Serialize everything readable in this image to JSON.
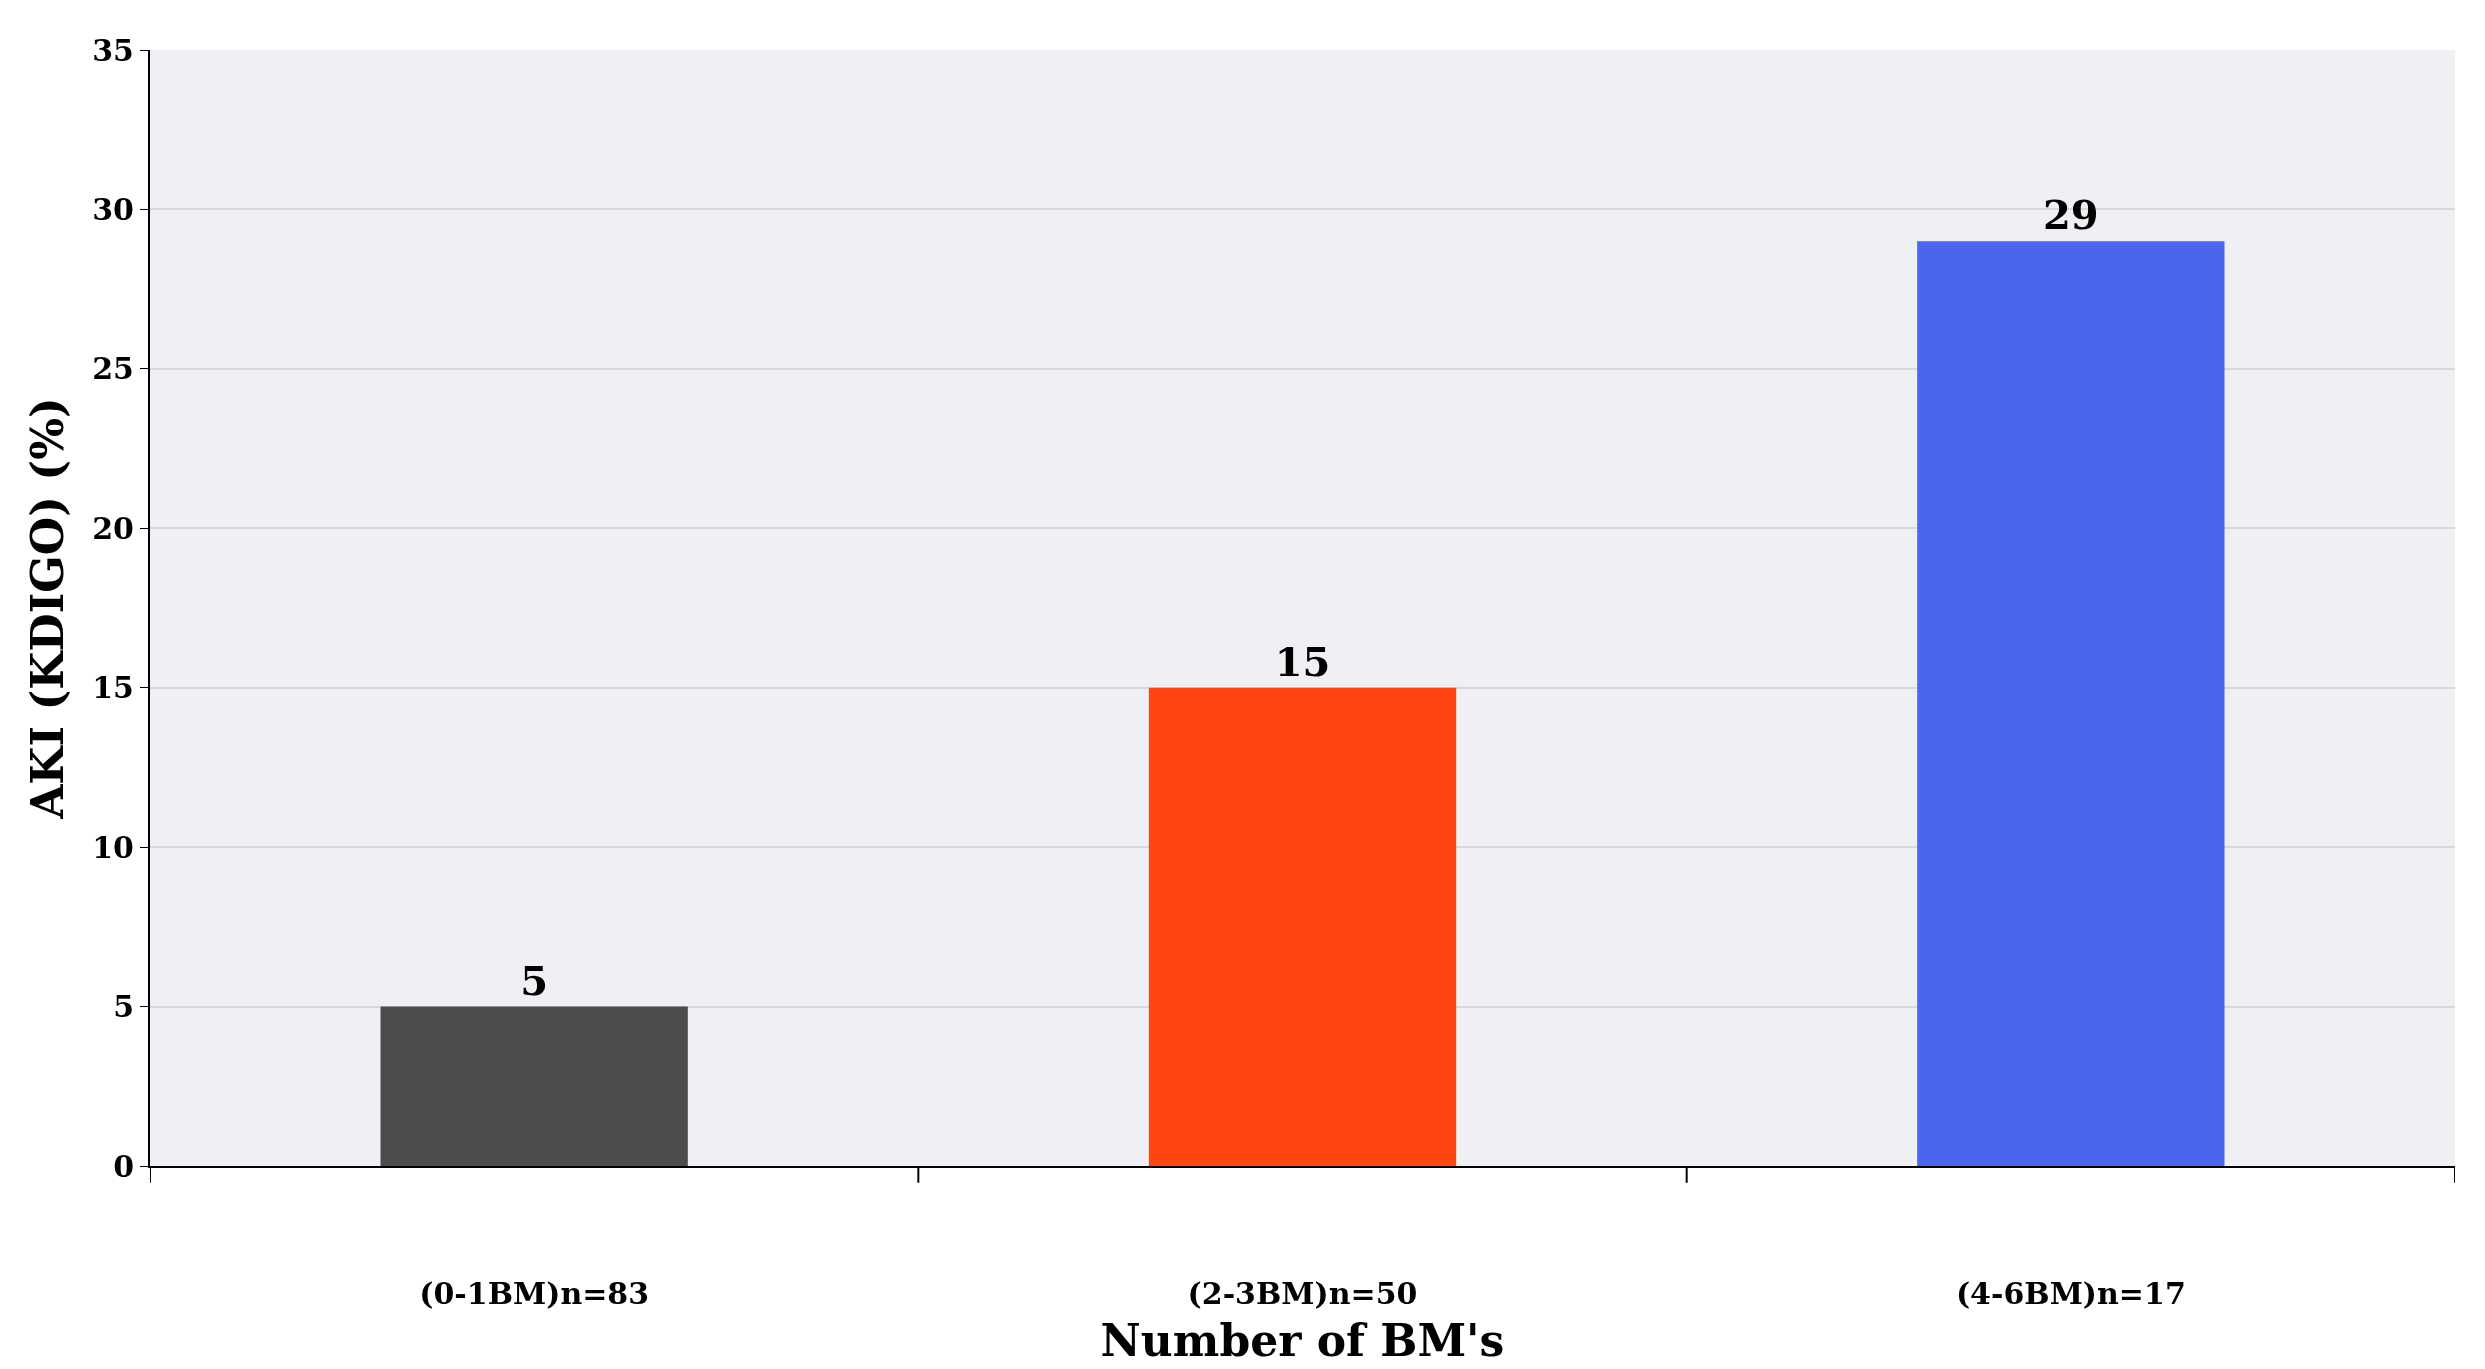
{
  "chart_data": {
    "type": "bar",
    "xlabel": "Number of BM's",
    "ylabel": "AKI (KDIGO) (%)",
    "categories": [
      "(0-1BM)n=83",
      "(2-3BM)n=50",
      "(4-6BM)n=17"
    ],
    "values": [
      5,
      15,
      29
    ],
    "colors": [
      "#4d4d4d",
      "#ff4510",
      "#4a66ee"
    ],
    "ylim": [
      0,
      35
    ],
    "yticks": [
      0,
      5,
      10,
      15,
      20,
      25,
      30,
      35
    ],
    "grid": "y",
    "data_labels": true
  }
}
